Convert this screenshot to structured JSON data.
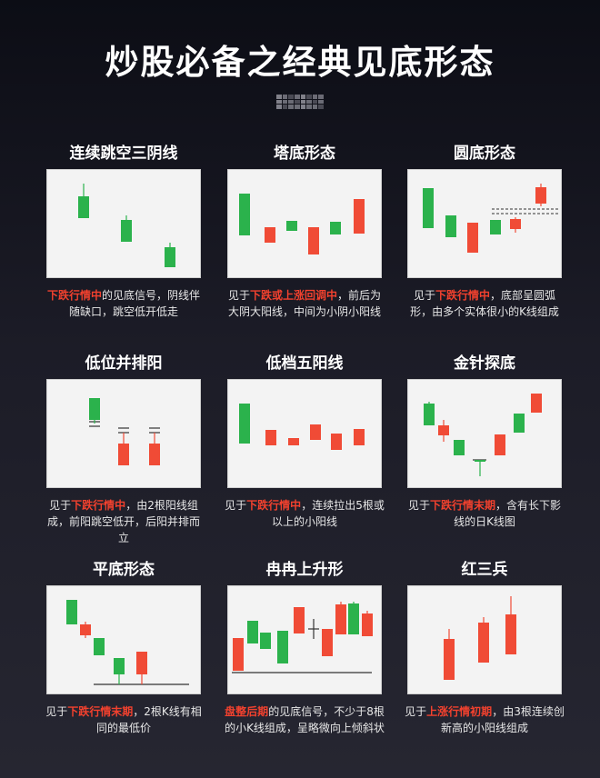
{
  "title": "炒股必备之经典见底形态",
  "colors": {
    "up": "#f04b36",
    "down": "#2bb24c",
    "highlight": "#f2412e",
    "line": "#333333"
  },
  "patterns": [
    {
      "name": "连续跳空三阴线",
      "desc": [
        {
          "t": "下跌行情中",
          "h": true
        },
        {
          "t": "的见底信号，阴线伴随缺口，跳空低开低走",
          "h": false
        }
      ],
      "candles": [
        {
          "c": "down",
          "wt": 15,
          "bt": 29,
          "bb": 53,
          "wb": 53
        },
        {
          "c": "down",
          "wt": 50,
          "bt": 55,
          "bb": 79,
          "wb": 79
        },
        {
          "c": "down",
          "wt": 80,
          "bt": 85,
          "bb": 107,
          "wb": 107
        }
      ]
    },
    {
      "name": "塔底形态",
      "desc": [
        {
          "t": "见于",
          "h": false
        },
        {
          "t": "下跌或上涨回调中",
          "h": true
        },
        {
          "t": "，前后为大阴大阳线，中间为小阴小阳线",
          "h": false
        }
      ],
      "candles": [
        {
          "c": "down",
          "wt": 26,
          "bt": 26,
          "bb": 72,
          "wb": 72
        },
        {
          "c": "up",
          "wt": 63,
          "bt": 63,
          "bb": 80,
          "wb": 80
        },
        {
          "c": "down",
          "wt": 56,
          "bt": 56,
          "bb": 67,
          "wb": 67
        },
        {
          "c": "up",
          "wt": 63,
          "bt": 63,
          "bb": 93,
          "wb": 93
        },
        {
          "c": "down",
          "wt": 57,
          "bt": 57,
          "bb": 71,
          "wb": 71
        },
        {
          "c": "up",
          "wt": 32,
          "bt": 32,
          "bb": 70,
          "wb": 70
        }
      ]
    },
    {
      "name": "圆底形态",
      "desc": [
        {
          "t": "见于",
          "h": false
        },
        {
          "t": "下跌行情中",
          "h": true
        },
        {
          "t": "，底部呈圆弧形，由多个实体很小的K线组成",
          "h": false
        }
      ],
      "candles": [
        {
          "c": "down",
          "wt": 20,
          "bt": 20,
          "bb": 64,
          "wb": 64
        },
        {
          "c": "down",
          "wt": 50,
          "bt": 50,
          "bb": 74,
          "wb": 74
        },
        {
          "c": "up",
          "wt": 58,
          "bt": 58,
          "bb": 91,
          "wb": 91
        },
        {
          "c": "down",
          "wt": 55,
          "bt": 55,
          "bb": 71,
          "wb": 71
        },
        {
          "c": "up",
          "wt": 52,
          "bt": 54,
          "bb": 65,
          "wb": 69
        },
        {
          "c": "up",
          "wt": 15,
          "bt": 19,
          "bb": 37,
          "wb": 40
        }
      ]
    },
    {
      "name": "低位并排阳",
      "desc": [
        {
          "t": "见于",
          "h": false
        },
        {
          "t": "下跌行情中",
          "h": true
        },
        {
          "t": "，由2根阳线组成，前阳跳空低开，后阳并排而立",
          "h": false
        }
      ],
      "candles": [
        {
          "c": "down",
          "wt": 20,
          "bt": 20,
          "bb": 44,
          "wb": 48
        },
        {
          "c": "up",
          "wt": 58,
          "bt": 70,
          "bb": 94,
          "wb": 94
        },
        {
          "c": "up",
          "wt": 58,
          "bt": 70,
          "bb": 94,
          "wb": 94
        }
      ]
    },
    {
      "name": "低档五阳线",
      "desc": [
        {
          "t": "见于",
          "h": false
        },
        {
          "t": "下跌行情中",
          "h": true
        },
        {
          "t": "，连续拉出5根或以上的小阳线",
          "h": false
        }
      ],
      "candles": [
        {
          "c": "down",
          "wt": 26,
          "bt": 26,
          "bb": 70,
          "wb": 70
        },
        {
          "c": "up",
          "wt": 55,
          "bt": 55,
          "bb": 72,
          "wb": 72
        },
        {
          "c": "up",
          "wt": 64,
          "bt": 64,
          "bb": 72,
          "wb": 72
        },
        {
          "c": "up",
          "wt": 49,
          "bt": 49,
          "bb": 66,
          "wb": 66
        },
        {
          "c": "up",
          "wt": 59,
          "bt": 59,
          "bb": 77,
          "wb": 77
        },
        {
          "c": "up",
          "wt": 54,
          "bt": 54,
          "bb": 72,
          "wb": 72
        }
      ]
    },
    {
      "name": "金针探底",
      "desc": [
        {
          "t": "见于",
          "h": false
        },
        {
          "t": "下跌行情末期",
          "h": true
        },
        {
          "t": "，含有长下影线的日K线图",
          "h": false
        }
      ],
      "candles": [
        {
          "c": "down",
          "wt": 24,
          "bt": 26,
          "bb": 50,
          "wb": 50
        },
        {
          "c": "up",
          "wt": 44,
          "bt": 50,
          "bb": 61,
          "wb": 68
        },
        {
          "c": "down",
          "wt": 66,
          "bt": 66,
          "bb": 83,
          "wb": 83
        },
        {
          "c": "down",
          "wt": 88,
          "bt": 88,
          "bb": 89,
          "wb": 106
        },
        {
          "c": "up",
          "wt": 60,
          "bt": 60,
          "bb": 83,
          "wb": 83
        },
        {
          "c": "down",
          "wt": 37,
          "bt": 37,
          "bb": 58,
          "wb": 58
        },
        {
          "c": "up",
          "wt": 15,
          "bt": 15,
          "bb": 36,
          "wb": 36
        }
      ]
    },
    {
      "name": "平底形态",
      "desc": [
        {
          "t": "见于",
          "h": false
        },
        {
          "t": "下跌行情末期",
          "h": true
        },
        {
          "t": "，2根K线有相同的最低价",
          "h": false
        }
      ],
      "candles": [
        {
          "c": "down",
          "wt": 15,
          "bt": 15,
          "bb": 42,
          "wb": 42
        },
        {
          "c": "up",
          "wt": 39,
          "bt": 42,
          "bb": 54,
          "wb": 57
        },
        {
          "c": "down",
          "wt": 57,
          "bt": 57,
          "bb": 76,
          "wb": 76
        },
        {
          "c": "down",
          "wt": 79,
          "bt": 79,
          "bb": 97,
          "wb": 108
        },
        {
          "c": "up",
          "wt": 72,
          "bt": 72,
          "bb": 97,
          "wb": 108
        }
      ]
    },
    {
      "name": "冉冉上升形",
      "desc": [
        {
          "t": "盘整后期",
          "h": true
        },
        {
          "t": "的见底信号，不少于8根的小K线组成，呈略微向上倾斜状",
          "h": false
        }
      ],
      "candles": [
        {
          "c": "up",
          "wt": 57,
          "bt": 57,
          "bb": 93,
          "wb": 93
        },
        {
          "c": "down",
          "wt": 38,
          "bt": 38,
          "bb": 63,
          "wb": 63
        },
        {
          "c": "down",
          "wt": 51,
          "bt": 51,
          "bb": 69,
          "wb": 69
        },
        {
          "c": "down",
          "wt": 49,
          "bt": 49,
          "bb": 85,
          "wb": 85
        },
        {
          "c": "up",
          "wt": 23,
          "bt": 23,
          "bb": 52,
          "wb": 52
        },
        {
          "c": "doji",
          "wt": 36,
          "bt": 47,
          "bb": 48,
          "wb": 58
        },
        {
          "c": "up",
          "wt": 47,
          "bt": 47,
          "bb": 77,
          "wb": 77
        },
        {
          "c": "up",
          "wt": 17,
          "bt": 20,
          "bb": 53,
          "wb": 53
        },
        {
          "c": "down",
          "wt": 17,
          "bt": 19,
          "bb": 53,
          "wb": 53
        },
        {
          "c": "up",
          "wt": 27,
          "bt": 30,
          "bb": 55,
          "wb": 55
        }
      ]
    },
    {
      "name": "红三兵",
      "desc": [
        {
          "t": "见于",
          "h": false
        },
        {
          "t": "上涨行情初期",
          "h": true
        },
        {
          "t": "，由3根连续创新高的小阳线组成",
          "h": false
        }
      ],
      "candles": [
        {
          "c": "up",
          "wt": 47,
          "bt": 58,
          "bb": 103,
          "wb": 103
        },
        {
          "c": "up",
          "wt": 34,
          "bt": 40,
          "bb": 84,
          "wb": 84
        },
        {
          "c": "up",
          "wt": 11,
          "bt": 31,
          "bb": 75,
          "wb": 75
        }
      ]
    }
  ]
}
